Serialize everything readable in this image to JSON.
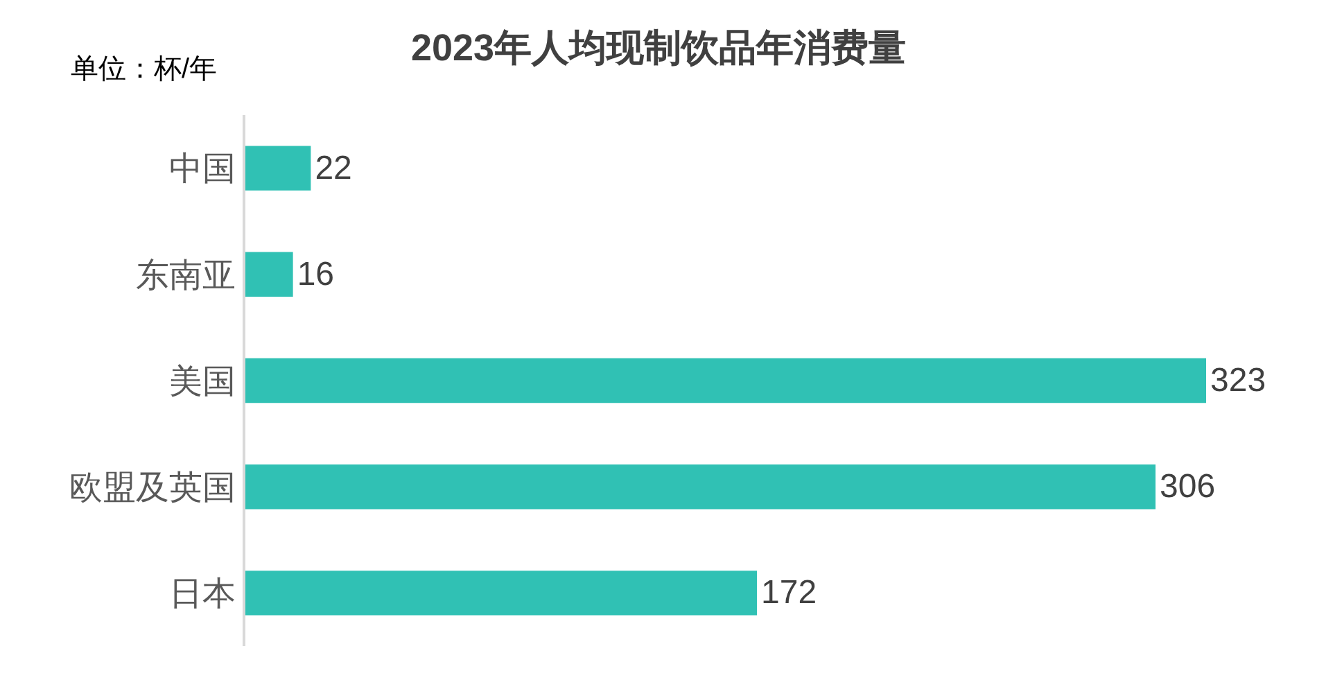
{
  "chart_data": {
    "type": "bar",
    "orientation": "horizontal",
    "title": "2023年人均现制饮品年消费量",
    "annotations": [
      "单位：杯/年"
    ],
    "categories": [
      "中国",
      "东南亚",
      "美国",
      "欧盟及英国",
      "日本"
    ],
    "values": [
      22,
      16,
      323,
      306,
      172
    ],
    "color": "#30c1b4",
    "data_labels": true
  }
}
